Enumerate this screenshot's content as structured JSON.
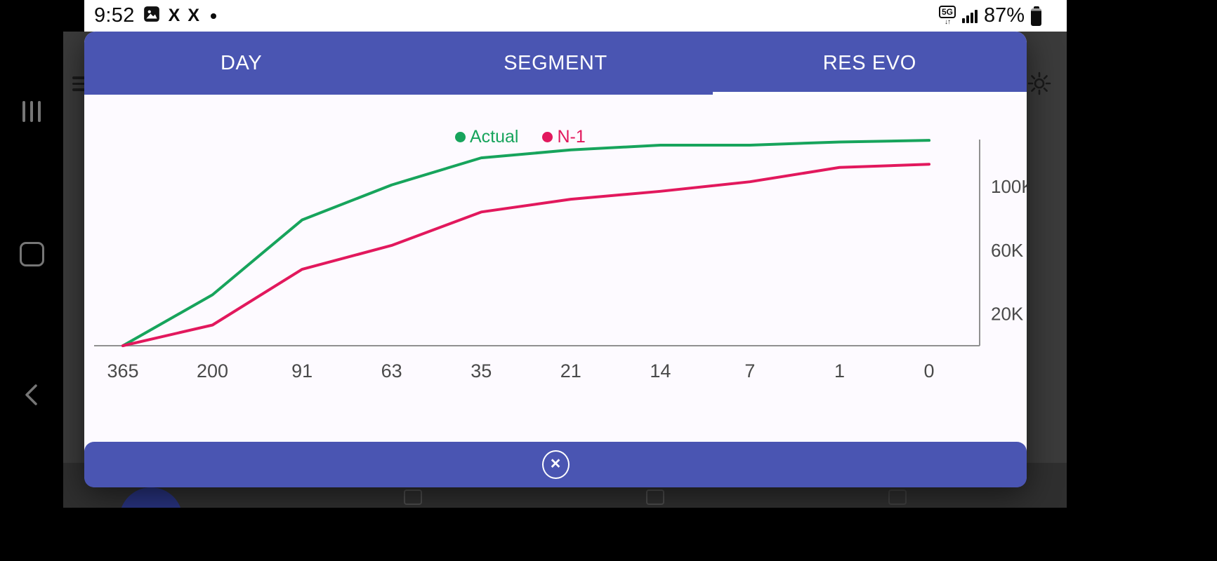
{
  "status_bar": {
    "time": "9:52",
    "x_app_glyph": "X",
    "network_label": "5G",
    "data_arrows_glyph": "↓↑",
    "battery_percent": "87%"
  },
  "modal": {
    "tabs": [
      {
        "label": "DAY",
        "active": false
      },
      {
        "label": "SEGMENT",
        "active": false
      },
      {
        "label": "RES EVO",
        "active": true
      }
    ],
    "close_glyph": "×"
  },
  "chart_data": {
    "type": "line",
    "title": "",
    "categories": [
      "365",
      "200",
      "91",
      "63",
      "35",
      "21",
      "14",
      "7",
      "1",
      "0"
    ],
    "series": [
      {
        "name": "Actual",
        "color": "#17a45c",
        "values": [
          0,
          32000,
          79000,
          101000,
          118000,
          123000,
          126000,
          126000,
          128000,
          129000
        ]
      },
      {
        "name": "N-1",
        "color": "#e2185d",
        "values": [
          0,
          13000,
          48000,
          63000,
          84000,
          92000,
          97000,
          103000,
          112000,
          114000
        ]
      }
    ],
    "y_ticks": [
      {
        "value": 100000,
        "label": "100K"
      },
      {
        "value": 60000,
        "label": "60K"
      },
      {
        "value": 20000,
        "label": "20K"
      }
    ],
    "ylim": [
      0,
      130000
    ],
    "xlabel": "",
    "ylabel": "",
    "legend_position": "top-center",
    "y_axis_side": "right",
    "grid": false
  }
}
